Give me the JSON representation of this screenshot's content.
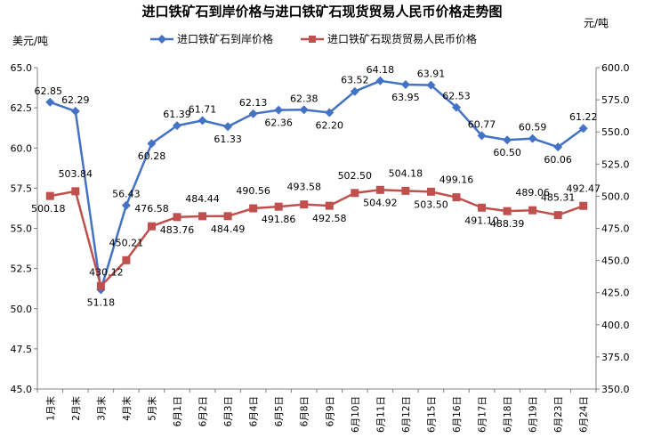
{
  "chart_data": {
    "type": "line",
    "title": "进口铁矿石到岸价格与进口铁矿石现货贸易人民币价格走势图",
    "ylabel_left": "美元/吨",
    "ylabel_right": "元/吨",
    "categories": [
      "1月末",
      "2月末",
      "3月末",
      "4月末",
      "5月末",
      "6月1日",
      "6月2日",
      "6月3日",
      "6月4日",
      "6月5日",
      "6月8日",
      "6月9日",
      "6月10日",
      "6月11日",
      "6月12日",
      "6月15日",
      "6月16日",
      "6月17日",
      "6月18日",
      "6月19日",
      "6月23日",
      "6月24日"
    ],
    "left_axis": {
      "min": 45.0,
      "max": 65.0,
      "ticks": [
        "45.0",
        "47.5",
        "50.0",
        "52.5",
        "55.0",
        "57.5",
        "60.0",
        "62.5",
        "65.0"
      ]
    },
    "right_axis": {
      "min": 350.0,
      "max": 600.0,
      "ticks": [
        "350.0",
        "375.0",
        "400.0",
        "425.0",
        "450.0",
        "475.0",
        "500.0",
        "525.0",
        "550.0",
        "575.0",
        "600.0"
      ]
    },
    "legend_position": "top",
    "series": [
      {
        "name": "进口铁矿石到岸价格",
        "axis": "left",
        "color": "#4472C4",
        "marker": "diamond",
        "values": [
          62.85,
          62.29,
          51.18,
          56.43,
          60.28,
          61.39,
          61.71,
          61.33,
          62.13,
          62.36,
          62.38,
          62.2,
          63.52,
          64.18,
          63.95,
          63.91,
          62.53,
          60.77,
          60.5,
          60.59,
          60.06,
          61.22
        ],
        "labels": [
          "62.85",
          "62.29",
          "51.18",
          "56.43",
          "60.28",
          "61.39",
          "61.71",
          "61.33",
          "62.13",
          "62.36",
          "62.38",
          "62.20",
          "63.52",
          "64.18",
          "63.95",
          "63.91",
          "62.53",
          "60.77",
          "60.50",
          "60.59",
          "60.06",
          "61.22"
        ]
      },
      {
        "name": "进口铁矿石现货贸易人民币价格",
        "axis": "right",
        "color": "#C0504D",
        "marker": "square",
        "values": [
          500.18,
          503.84,
          430.12,
          450.21,
          476.58,
          483.76,
          484.44,
          484.49,
          490.56,
          491.86,
          493.58,
          492.58,
          502.5,
          504.92,
          504.18,
          503.5,
          499.16,
          491.1,
          488.39,
          489.06,
          485.31,
          492.47
        ],
        "labels": [
          "500.18",
          "503.84",
          "430.12",
          "450.21",
          "476.58",
          "483.76",
          "484.44",
          "484.49",
          "490.56",
          "491.86",
          "493.58",
          "492.58",
          "502.50",
          "504.92",
          "504.18",
          "503.50",
          "499.16",
          "491.10",
          "488.39",
          "489.06",
          "485.31",
          "492.47"
        ]
      }
    ]
  }
}
